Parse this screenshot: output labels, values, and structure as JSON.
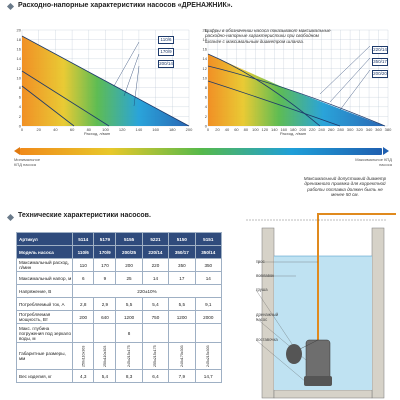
{
  "section1": {
    "title": "Расходно-напорные характеристики насосов «ДРЕНАЖНИК»."
  },
  "chart_left": {
    "legend": [
      "110/6",
      "170/9",
      "200/14"
    ],
    "xlabel": "Расход, л/мин",
    "y_ticks": [
      "20",
      "18",
      "16",
      "14",
      "12",
      "10",
      "8",
      "6",
      "4",
      "2",
      "0"
    ],
    "x_ticks": [
      "0",
      "20",
      "40",
      "60",
      "80",
      "100",
      "120",
      "140",
      "160",
      "180",
      "200"
    ]
  },
  "chart_right": {
    "legend": [
      "220/14",
      "350/17",
      "200/20"
    ],
    "xlabel": "Расход, л/мин",
    "y_ticks": [
      "20",
      "18",
      "16",
      "14",
      "12",
      "10",
      "8",
      "6",
      "4",
      "2",
      "0"
    ],
    "x_ticks": [
      "0",
      "20",
      "40",
      "60",
      "80",
      "100",
      "120",
      "140",
      "160",
      "180",
      "200",
      "220",
      "240",
      "260",
      "280",
      "300",
      "320",
      "340",
      "360",
      "380"
    ]
  },
  "note_top": "Цифры в обозначении насоса показывают максимальные расходно-напорные характеристики при свободном шланге с максимальным диаметром шланга.",
  "kpd_bar": {
    "left": "Минимальное КПД насоса",
    "right": "Максимальное КПД насоса"
  },
  "section2": {
    "title": "Технические характеристики насосов."
  },
  "table": {
    "header1": [
      "Артикул",
      "5114",
      "5179",
      "5155",
      "5221",
      "5150",
      "5151"
    ],
    "header2": [
      "Модель насоса",
      "110/6",
      "170/9",
      "200/25",
      "220/14",
      "350/17",
      "350/14"
    ],
    "rows": [
      [
        "Максимальный расход, л/мин",
        "110",
        "170",
        "200",
        "220",
        "350",
        "350"
      ],
      [
        "Максимальный напор, м",
        "6",
        "9",
        "25",
        "14",
        "17",
        "14"
      ],
      [
        "Напряжение, В",
        "220±10%"
      ],
      [
        "Потребляемый ток, А",
        "2,8",
        "2,9",
        "5,5",
        "5,4",
        "5,5",
        "9,1"
      ],
      [
        "Потребляемая мощность, Вт",
        "200",
        "640",
        "1200",
        "750",
        "1200",
        "2000"
      ],
      [
        "Макс. глубина погружения под зеркало воды, м",
        "",
        "",
        "8",
        "",
        "",
        ""
      ],
      [
        "Габаритные размеры, мм",
        "250х110х303",
        "250х110х303",
        "245х215х175",
        "255х215х175",
        "240х170х303",
        "245х215х303"
      ],
      [
        "Вес изделия, кг",
        "4,3",
        "5,4",
        "8,3",
        "6,4",
        "7,9",
        "14,7"
      ]
    ]
  },
  "note_right": "Максимальный допустимый диаметр дренажного приямка для корректной работы поплавка должен быть не менее 50 см.",
  "diagram_labels": [
    "трос",
    "поплавок",
    "груша",
    "дренажный насос",
    "поставочка"
  ],
  "colors": {
    "navy": "#2f4b7c",
    "accent": "#e08a1e"
  }
}
